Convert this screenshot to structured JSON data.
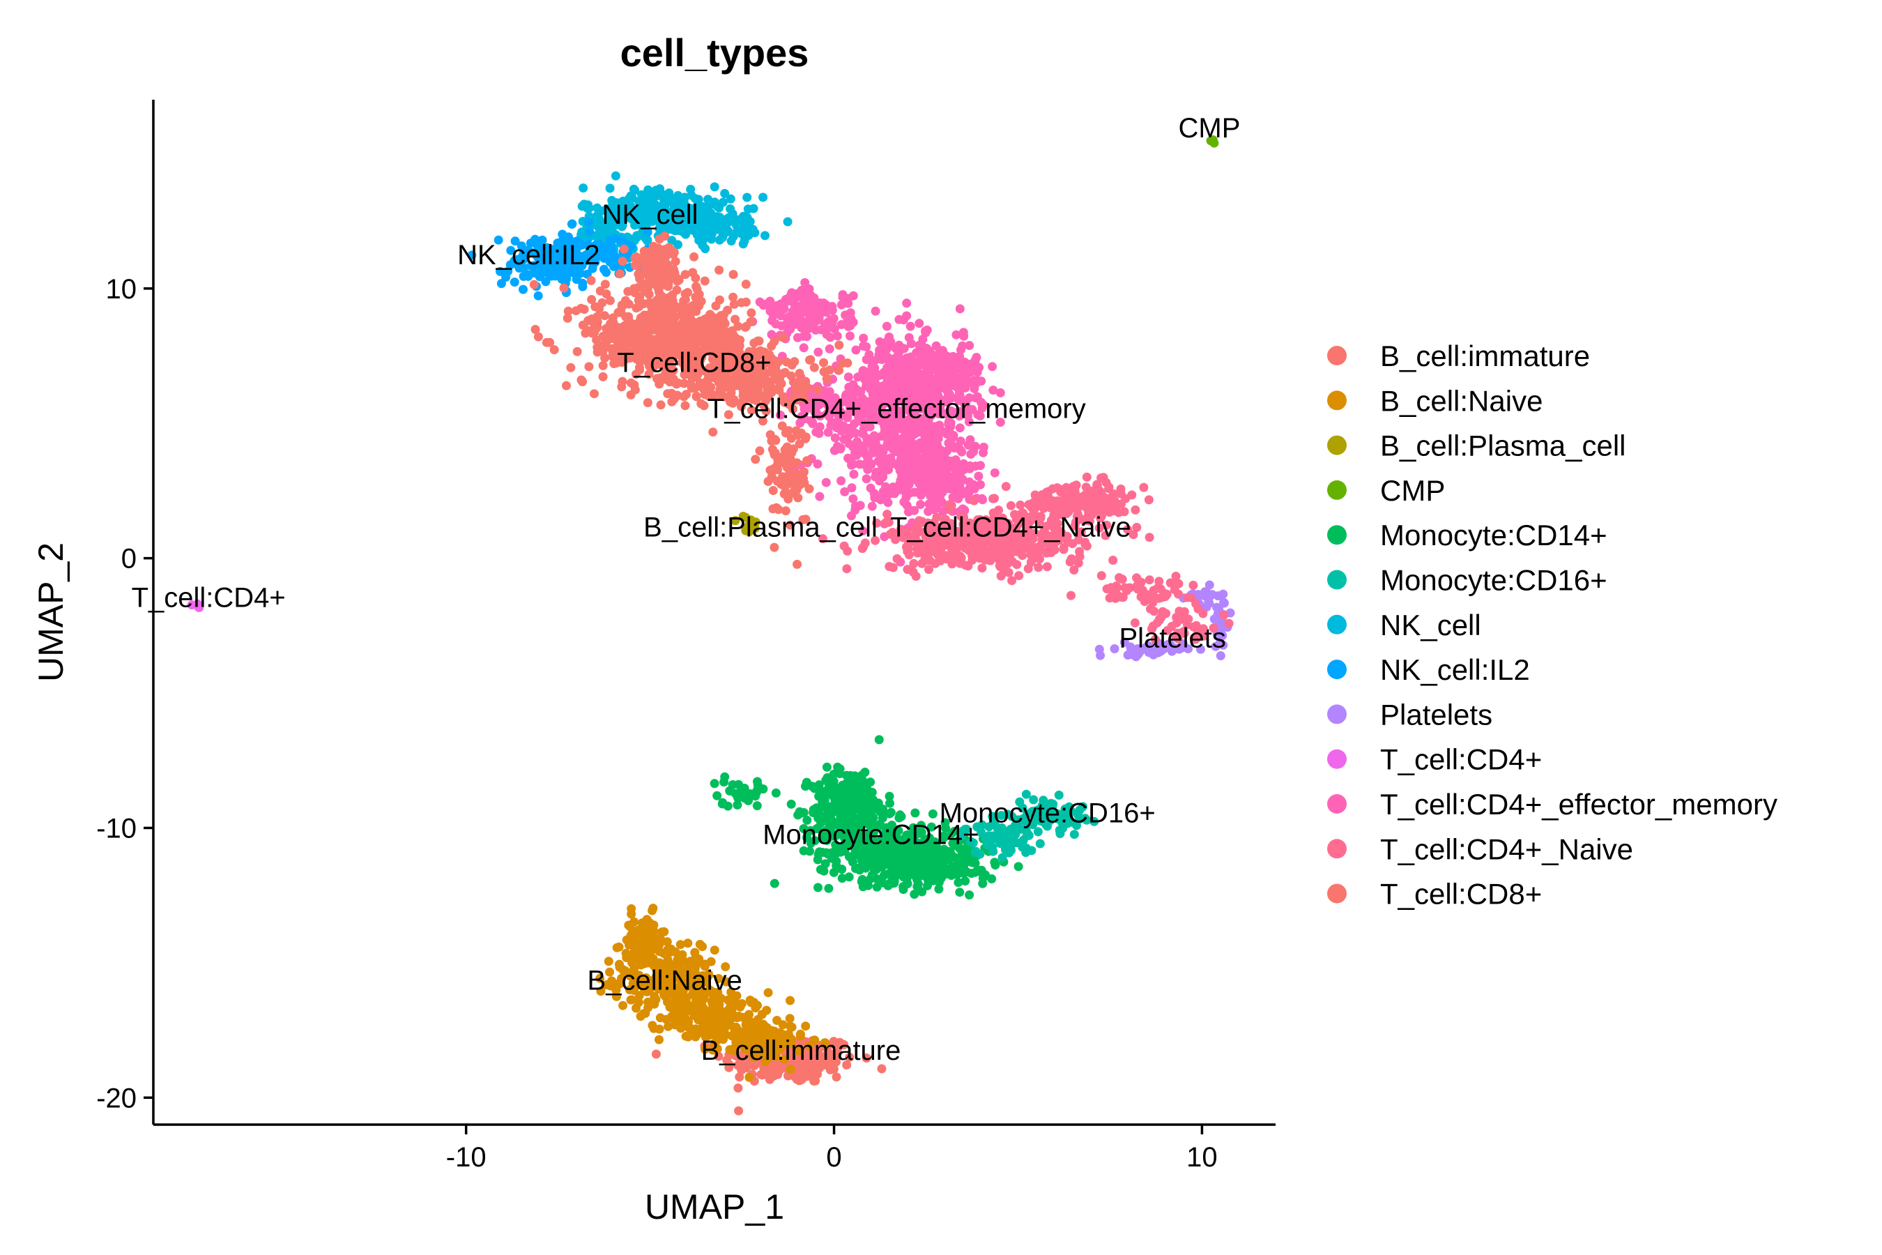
{
  "chart_data": {
    "type": "scatter",
    "title": "cell_types",
    "xlabel": "UMAP_1",
    "ylabel": "UMAP_2",
    "xlim": [
      -18.5,
      12
    ],
    "ylim": [
      -21,
      17
    ],
    "x_ticks": [
      -10,
      0,
      10
    ],
    "y_ticks": [
      -20,
      -10,
      0,
      10
    ],
    "grid": false,
    "legend_position": "right",
    "series": [
      {
        "name": "B_cell:immature",
        "color": "#F8766D",
        "label": {
          "text": "B_cell:immature",
          "x": -0.9,
          "y": -18.6
        },
        "clusters": [
          {
            "x": -1.2,
            "y": -18.6,
            "sx": 0.9,
            "sy": 0.45,
            "n": 220
          }
        ]
      },
      {
        "name": "B_cell:Naive",
        "color": "#DB8E00",
        "label": {
          "text": "B_cell:Naive",
          "x": -4.6,
          "y": -16.0
        },
        "clusters": [
          {
            "x": -4.6,
            "y": -15.6,
            "sx": 0.7,
            "sy": 0.55,
            "n": 220
          },
          {
            "x": -3.3,
            "y": -17.0,
            "sx": 0.7,
            "sy": 0.45,
            "n": 180
          },
          {
            "x": -2.0,
            "y": -17.9,
            "sx": 0.6,
            "sy": 0.35,
            "n": 120
          },
          {
            "x": -5.2,
            "y": -14.2,
            "sx": 0.3,
            "sy": 0.5,
            "n": 80
          }
        ]
      },
      {
        "name": "B_cell:Plasma_cell",
        "color": "#AEA200",
        "label": {
          "text": "B_cell:Plasma_cell",
          "x": -2.0,
          "y": 0.8
        },
        "clusters": [
          {
            "x": -2.3,
            "y": 1.2,
            "sx": 0.15,
            "sy": 0.2,
            "n": 14
          }
        ]
      },
      {
        "name": "CMP",
        "color": "#64B200",
        "label": {
          "text": "CMP",
          "x": 10.2,
          "y": 15.6
        },
        "clusters": [
          {
            "x": 10.3,
            "y": 15.5,
            "sx": 0.06,
            "sy": 0.06,
            "n": 3
          }
        ]
      },
      {
        "name": "Monocyte:CD14+",
        "color": "#00BD5C",
        "label": {
          "text": "Monocyte:CD14+",
          "x": 1.0,
          "y": -10.6
        },
        "clusters": [
          {
            "x": 0.4,
            "y": -9.3,
            "sx": 0.5,
            "sy": 0.75,
            "n": 300
          },
          {
            "x": 1.6,
            "y": -10.9,
            "sx": 1.0,
            "sy": 0.55,
            "n": 360
          },
          {
            "x": 3.0,
            "y": -11.4,
            "sx": 0.7,
            "sy": 0.4,
            "n": 150
          },
          {
            "x": -2.6,
            "y": -8.7,
            "sx": 0.4,
            "sy": 0.25,
            "n": 30
          }
        ]
      },
      {
        "name": "Monocyte:CD16+",
        "color": "#00C1A7",
        "label": {
          "text": "Monocyte:CD16+",
          "x": 5.8,
          "y": -9.8
        },
        "clusters": [
          {
            "x": 5.8,
            "y": -9.5,
            "sx": 0.5,
            "sy": 0.3,
            "n": 80
          },
          {
            "x": 4.5,
            "y": -10.4,
            "sx": 0.5,
            "sy": 0.3,
            "n": 60
          }
        ]
      },
      {
        "name": "NK_cell",
        "color": "#00BADE",
        "label": {
          "text": "NK_cell",
          "x": -5.0,
          "y": 12.4
        },
        "clusters": [
          {
            "x": -4.8,
            "y": 12.8,
            "sx": 1.0,
            "sy": 0.5,
            "n": 260
          },
          {
            "x": -3.2,
            "y": 12.3,
            "sx": 0.7,
            "sy": 0.3,
            "n": 90
          },
          {
            "x": -6.2,
            "y": 11.9,
            "sx": 0.4,
            "sy": 0.4,
            "n": 60
          }
        ]
      },
      {
        "name": "NK_cell:IL2",
        "color": "#00A6FF",
        "label": {
          "text": "NK_cell:IL2",
          "x": -8.3,
          "y": 10.9
        },
        "clusters": [
          {
            "x": -7.6,
            "y": 11.0,
            "sx": 0.7,
            "sy": 0.5,
            "n": 180
          },
          {
            "x": -6.0,
            "y": 11.3,
            "sx": 0.4,
            "sy": 0.3,
            "n": 50
          }
        ]
      },
      {
        "name": "Platelets",
        "color": "#B385FF",
        "label": {
          "text": "Platelets",
          "x": 9.2,
          "y": -3.3
        },
        "clusters": [
          {
            "x": 8.6,
            "y": -3.4,
            "sx": 0.45,
            "sy": 0.12,
            "n": 50
          },
          {
            "x": 10.5,
            "y": -2.4,
            "sx": 0.12,
            "sy": 0.5,
            "n": 40
          },
          {
            "x": 10.0,
            "y": -1.4,
            "sx": 0.2,
            "sy": 0.2,
            "n": 20
          }
        ]
      },
      {
        "name": "T_cell:CD4+",
        "color": "#EF67EB",
        "label": {
          "text": "T_cell:CD4+",
          "x": -17.0,
          "y": -1.8
        },
        "clusters": [
          {
            "x": -17.3,
            "y": -1.8,
            "sx": 0.1,
            "sy": 0.1,
            "n": 5
          }
        ]
      },
      {
        "name": "T_cell:CD4+_effector_memory",
        "color": "#FF63B6",
        "label": {
          "text": "T_cell:CD4+_effector_memory",
          "x": 1.7,
          "y": 5.2
        },
        "clusters": [
          {
            "x": 1.6,
            "y": 5.0,
            "sx": 1.0,
            "sy": 1.5,
            "n": 560
          },
          {
            "x": 2.7,
            "y": 6.5,
            "sx": 0.7,
            "sy": 0.7,
            "n": 280
          },
          {
            "x": 2.8,
            "y": 3.0,
            "sx": 0.6,
            "sy": 0.7,
            "n": 220
          },
          {
            "x": -0.7,
            "y": 9.0,
            "sx": 0.6,
            "sy": 0.45,
            "n": 150
          },
          {
            "x": -0.4,
            "y": 5.8,
            "sx": 0.4,
            "sy": 0.4,
            "n": 60
          }
        ]
      },
      {
        "name": "T_cell:CD4+_Naive",
        "color": "#FF6C91",
        "label": {
          "text": "T_cell:CD4+_Naive",
          "x": 4.8,
          "y": 0.8
        },
        "clusters": [
          {
            "x": 4.0,
            "y": 0.6,
            "sx": 1.4,
            "sy": 0.5,
            "n": 420
          },
          {
            "x": 6.7,
            "y": 2.1,
            "sx": 0.8,
            "sy": 0.35,
            "n": 170
          },
          {
            "x": 8.5,
            "y": -1.2,
            "sx": 0.7,
            "sy": 0.25,
            "n": 60
          },
          {
            "x": 9.5,
            "y": -2.5,
            "sx": 0.5,
            "sy": 0.35,
            "n": 40
          }
        ]
      },
      {
        "name": "T_cell:CD8+",
        "color": "#F8766D",
        "label": {
          "text": "T_cell:CD8+",
          "x": -3.8,
          "y": 6.9
        },
        "clusters": [
          {
            "x": -4.6,
            "y": 8.2,
            "sx": 1.1,
            "sy": 0.9,
            "n": 520
          },
          {
            "x": -2.6,
            "y": 6.8,
            "sx": 1.0,
            "sy": 0.6,
            "n": 280
          },
          {
            "x": -4.9,
            "y": 10.6,
            "sx": 0.4,
            "sy": 0.6,
            "n": 120
          },
          {
            "x": -1.3,
            "y": 3.2,
            "sx": 0.3,
            "sy": 1.0,
            "n": 90
          }
        ]
      }
    ]
  }
}
